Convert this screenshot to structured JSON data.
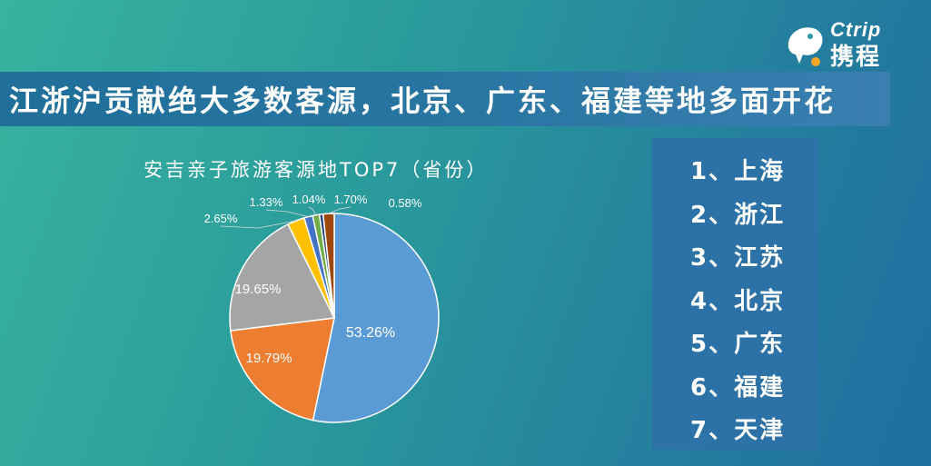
{
  "brand": {
    "logo_text": "Ctrip",
    "logo_cn": "携程"
  },
  "headline": "江浙沪贡献绝大多数客源，北京、广东、福建等地多面开花",
  "colors": {
    "accent": "#2c72a6"
  },
  "chart_data": {
    "type": "pie",
    "title": "安吉亲子旅游客源地TOP7（省份）",
    "slices": [
      {
        "label": "53.26%",
        "value": 53.26,
        "color": "#5b9bd5"
      },
      {
        "label": "19.79%",
        "value": 19.79,
        "color": "#ed7d31"
      },
      {
        "label": "19.65%",
        "value": 19.65,
        "color": "#a5a5a5"
      },
      {
        "label": "2.65%",
        "value": 2.65,
        "color": "#ffc000"
      },
      {
        "label": "1.33%",
        "value": 1.33,
        "color": "#4472c4"
      },
      {
        "label": "1.04%",
        "value": 1.04,
        "color": "#70ad47"
      },
      {
        "label": "0.58%",
        "value": 0.58,
        "color": "#264478"
      },
      {
        "label": "1.70%",
        "value": 1.7,
        "color": "#9e480e"
      }
    ]
  },
  "ranking": [
    "1、上海",
    "2、浙江",
    "3、江苏",
    "4、北京",
    "5、广东",
    "6、福建",
    "7、天津"
  ]
}
